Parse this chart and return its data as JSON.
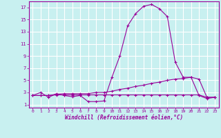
{
  "xlabel": "Windchill (Refroidissement éolien,°C)",
  "x_values": [
    0,
    1,
    2,
    3,
    4,
    5,
    6,
    7,
    8,
    9,
    10,
    11,
    12,
    13,
    14,
    15,
    16,
    17,
    18,
    19,
    20,
    21,
    22,
    23
  ],
  "line1_y": [
    2.5,
    3.0,
    2.2,
    2.8,
    2.5,
    2.3,
    2.5,
    1.5,
    1.5,
    1.6,
    5.5,
    9.0,
    14.0,
    16.0,
    17.2,
    17.5,
    16.8,
    15.5,
    8.0,
    5.5,
    5.5,
    2.5,
    2.0,
    2.2
  ],
  "line2_y": [
    2.5,
    2.5,
    2.5,
    2.7,
    2.8,
    2.8,
    2.8,
    2.8,
    3.0,
    3.0,
    3.2,
    3.5,
    3.7,
    4.0,
    4.2,
    4.5,
    4.7,
    5.0,
    5.2,
    5.3,
    5.5,
    5.2,
    2.2,
    2.2
  ],
  "line3_y": [
    2.5,
    2.5,
    2.5,
    2.6,
    2.6,
    2.6,
    2.6,
    2.6,
    2.6,
    2.6,
    2.6,
    2.6,
    2.6,
    2.6,
    2.6,
    2.6,
    2.6,
    2.6,
    2.6,
    2.6,
    2.6,
    2.6,
    2.2,
    2.2
  ],
  "line_color": "#990099",
  "bg_color": "#c8f0f0",
  "grid_color": "#ffffff",
  "ylim": [
    0.5,
    18
  ],
  "xlim": [
    -0.5,
    23.5
  ],
  "yticks": [
    1,
    3,
    5,
    7,
    9,
    11,
    13,
    15,
    17
  ],
  "xticks": [
    0,
    1,
    2,
    3,
    4,
    5,
    6,
    7,
    8,
    9,
    10,
    11,
    12,
    13,
    14,
    15,
    16,
    17,
    18,
    19,
    20,
    21,
    22,
    23
  ]
}
